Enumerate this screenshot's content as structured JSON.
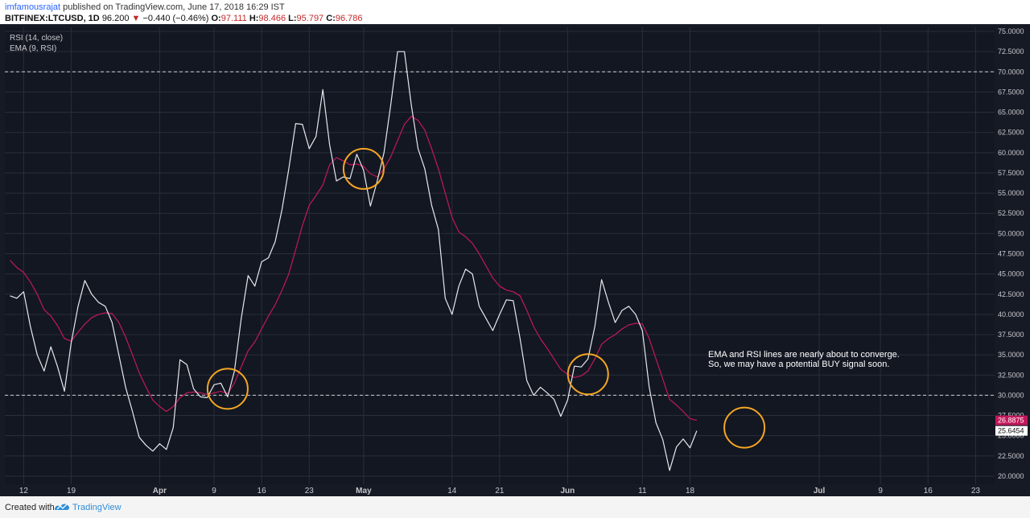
{
  "header": {
    "author": "imfamousrajat",
    "published_text": "published on TradingView.com, June 17, 2018 16:29 IST",
    "symbol": "BITFINEX:LTCUSD, 1D",
    "price": "96.200",
    "change_arrow": "▼",
    "change": "−0.440 (−0.46%)",
    "open_label": "O:",
    "open_value": "97.111",
    "high_label": "H:",
    "high_value": "98.466",
    "low_label": "L:",
    "low_value": "95.797",
    "close_label": "C:",
    "close_value": "96.786"
  },
  "chart_data": {
    "type": "line",
    "legend": [
      "RSI (14, close)",
      "EMA (9, RSI)"
    ],
    "legend_position": "top-left",
    "background": "#161a25",
    "colors": {
      "rsi": "#e8e8ec",
      "ema": "#c2185b",
      "circle": "#f5a623",
      "grid": "#2a2e39",
      "level": "#d0d0d0"
    },
    "ylim": [
      19,
      75.5
    ],
    "y_ticks": [
      "20.0000",
      "22.5000",
      "25.0000",
      "27.5000",
      "30.0000",
      "32.5000",
      "35.0000",
      "37.5000",
      "40.0000",
      "42.5000",
      "45.0000",
      "47.5000",
      "50.0000",
      "52.5000",
      "55.0000",
      "57.5000",
      "60.0000",
      "62.5000",
      "65.0000",
      "67.5000",
      "70.0000",
      "72.5000",
      "75.0000"
    ],
    "x_ticks": [
      {
        "label": "12",
        "bold": false
      },
      {
        "label": "19",
        "bold": false
      },
      {
        "label": "Apr",
        "bold": true
      },
      {
        "label": "9",
        "bold": false
      },
      {
        "label": "16",
        "bold": false
      },
      {
        "label": "23",
        "bold": false
      },
      {
        "label": "May",
        "bold": true
      },
      {
        "label": "14",
        "bold": false
      },
      {
        "label": "21",
        "bold": false
      },
      {
        "label": "Jun",
        "bold": true
      },
      {
        "label": "11",
        "bold": false
      },
      {
        "label": "18",
        "bold": false
      },
      {
        "label": "Jul",
        "bold": true
      },
      {
        "label": "9",
        "bold": false
      },
      {
        "label": "16",
        "bold": false
      },
      {
        "label": "23",
        "bold": false
      }
    ],
    "levels": [
      70,
      30
    ],
    "series": [
      {
        "name": "RSI (14, close)",
        "values": [
          42.3,
          42.0,
          42.8,
          38.5,
          35.0,
          33.0,
          36.0,
          33.5,
          30.5,
          36.5,
          41.0,
          44.2,
          42.5,
          41.5,
          41.0,
          39.0,
          35.0,
          31.0,
          28.0,
          24.8,
          23.8,
          23.1,
          24.0,
          23.3,
          26.0,
          34.4,
          33.8,
          30.8,
          29.8,
          29.7,
          31.3,
          31.5,
          29.8,
          33.0,
          39.5,
          44.8,
          43.5,
          46.5,
          47.0,
          49.0,
          53.0,
          58.0,
          63.6,
          63.5,
          60.5,
          62.0,
          67.8,
          61.0,
          56.5,
          57.0,
          56.8,
          59.8,
          57.8,
          53.4,
          56.5,
          60.0,
          66.0,
          72.5,
          72.5,
          66.0,
          60.5,
          58.0,
          53.5,
          50.5,
          42.0,
          40.0,
          43.5,
          45.6,
          45.0,
          41.0,
          39.5,
          38.0,
          40.0,
          41.8,
          41.7,
          37.0,
          31.8,
          30.0,
          31.0,
          30.3,
          29.5,
          27.4,
          29.4,
          33.6,
          33.5,
          34.5,
          38.5,
          44.3,
          41.5,
          39.0,
          40.5,
          41.0,
          40.0,
          38.0,
          31.0,
          26.6,
          24.5,
          20.7,
          23.6,
          24.6,
          23.5,
          25.6
        ],
        "last_value": "25.6454"
      },
      {
        "name": "EMA (9, RSI)",
        "values": [
          46.7,
          45.8,
          45.2,
          44.0,
          42.5,
          40.6,
          39.8,
          38.6,
          37.0,
          36.7,
          37.8,
          38.8,
          39.6,
          40.0,
          40.2,
          40.1,
          39.0,
          37.2,
          35.0,
          32.8,
          31.0,
          29.4,
          28.6,
          28.0,
          28.6,
          29.7,
          30.3,
          30.4,
          30.3,
          30.1,
          30.3,
          30.5,
          30.2,
          31.5,
          33.5,
          35.5,
          36.6,
          38.2,
          39.8,
          41.2,
          43.0,
          45.0,
          48.0,
          51.0,
          53.5,
          54.7,
          56.0,
          58.5,
          59.4,
          59.0,
          58.5,
          58.6,
          58.3,
          57.4,
          57.0,
          58.0,
          59.5,
          61.5,
          63.5,
          64.5,
          64.0,
          62.8,
          60.5,
          58.0,
          55.0,
          52.0,
          50.2,
          49.6,
          48.8,
          47.5,
          46.0,
          44.5,
          43.5,
          43.0,
          42.8,
          42.3,
          40.5,
          38.5,
          37.0,
          35.8,
          34.5,
          33.2,
          32.6,
          32.2,
          32.4,
          33.0,
          34.5,
          36.3,
          37.0,
          37.5,
          38.2,
          38.7,
          38.9,
          38.8,
          37.0,
          34.5,
          32.0,
          29.5,
          28.8,
          28.0,
          27.1,
          26.9
        ],
        "last_value": "26.8875"
      }
    ],
    "annotation": {
      "line1": "EMA and RSI lines are nearly about to converge.",
      "line2": "So, we may have a potential BUY signal soon."
    }
  },
  "footer": {
    "created_with": "Created with",
    "brand": "TradingView"
  }
}
